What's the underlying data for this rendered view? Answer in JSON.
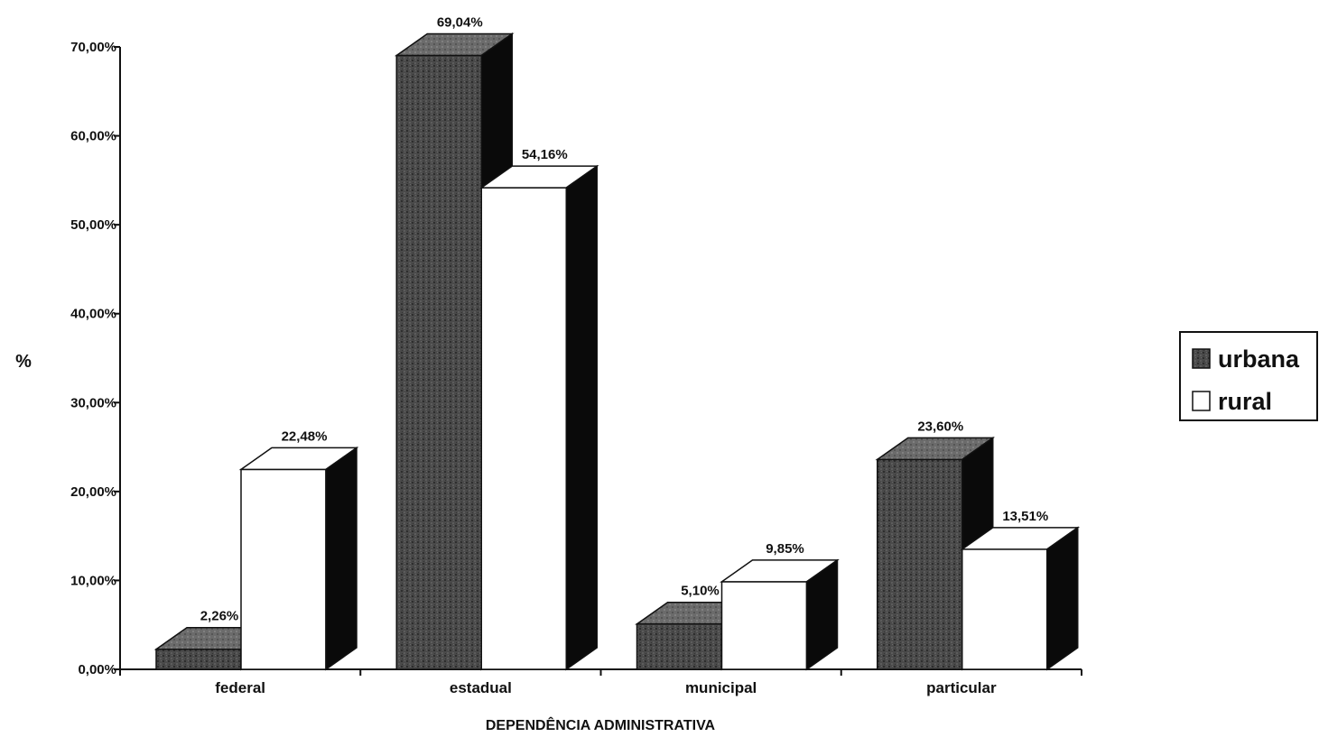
{
  "chart_data": {
    "type": "bar",
    "title": "",
    "xlabel": "DEPENDÊNCIA ADMINISTRATIVA",
    "ylabel": "%",
    "ylim": [
      0,
      70
    ],
    "yticks": [
      0,
      10,
      20,
      30,
      40,
      50,
      60,
      70
    ],
    "ytick_labels": [
      "0,00%",
      "10,00%",
      "20,00%",
      "30,00%",
      "40,00%",
      "50,00%",
      "60,00%",
      "70,00%"
    ],
    "categories": [
      "federal",
      "estadual",
      "municipal",
      "particular"
    ],
    "series": [
      {
        "name": "urbana",
        "values": [
          2.26,
          69.04,
          5.1,
          23.6
        ],
        "labels": [
          "2,26%",
          "69,04%",
          "5,10%",
          "23,60%"
        ],
        "color": "#4a4a4a"
      },
      {
        "name": "rural",
        "values": [
          22.48,
          54.16,
          9.85,
          13.51
        ],
        "labels": [
          "22,48%",
          "54,16%",
          "9,85%",
          "13,51%"
        ],
        "color": "#ffffff"
      }
    ],
    "style": "3d-bar",
    "grid": false,
    "legend_position": "right"
  }
}
